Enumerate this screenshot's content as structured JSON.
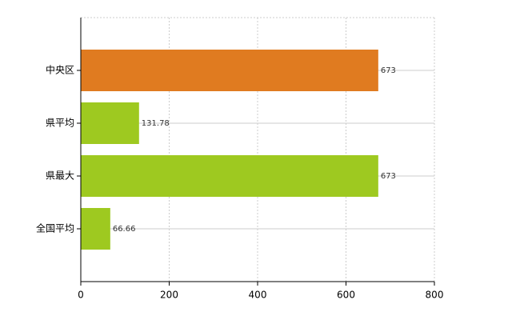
{
  "chart_data": {
    "type": "hbar",
    "categories": [
      "中央区",
      "県平均",
      "県最大",
      "全国平均"
    ],
    "values": [
      673,
      131.78,
      673,
      66.66
    ],
    "colors": [
      "#e07b20",
      "#9ec920",
      "#9ec920",
      "#9ec920"
    ],
    "xlim": [
      0,
      800
    ],
    "xticks": [
      0,
      200,
      400,
      600,
      800
    ],
    "grid": true
  }
}
